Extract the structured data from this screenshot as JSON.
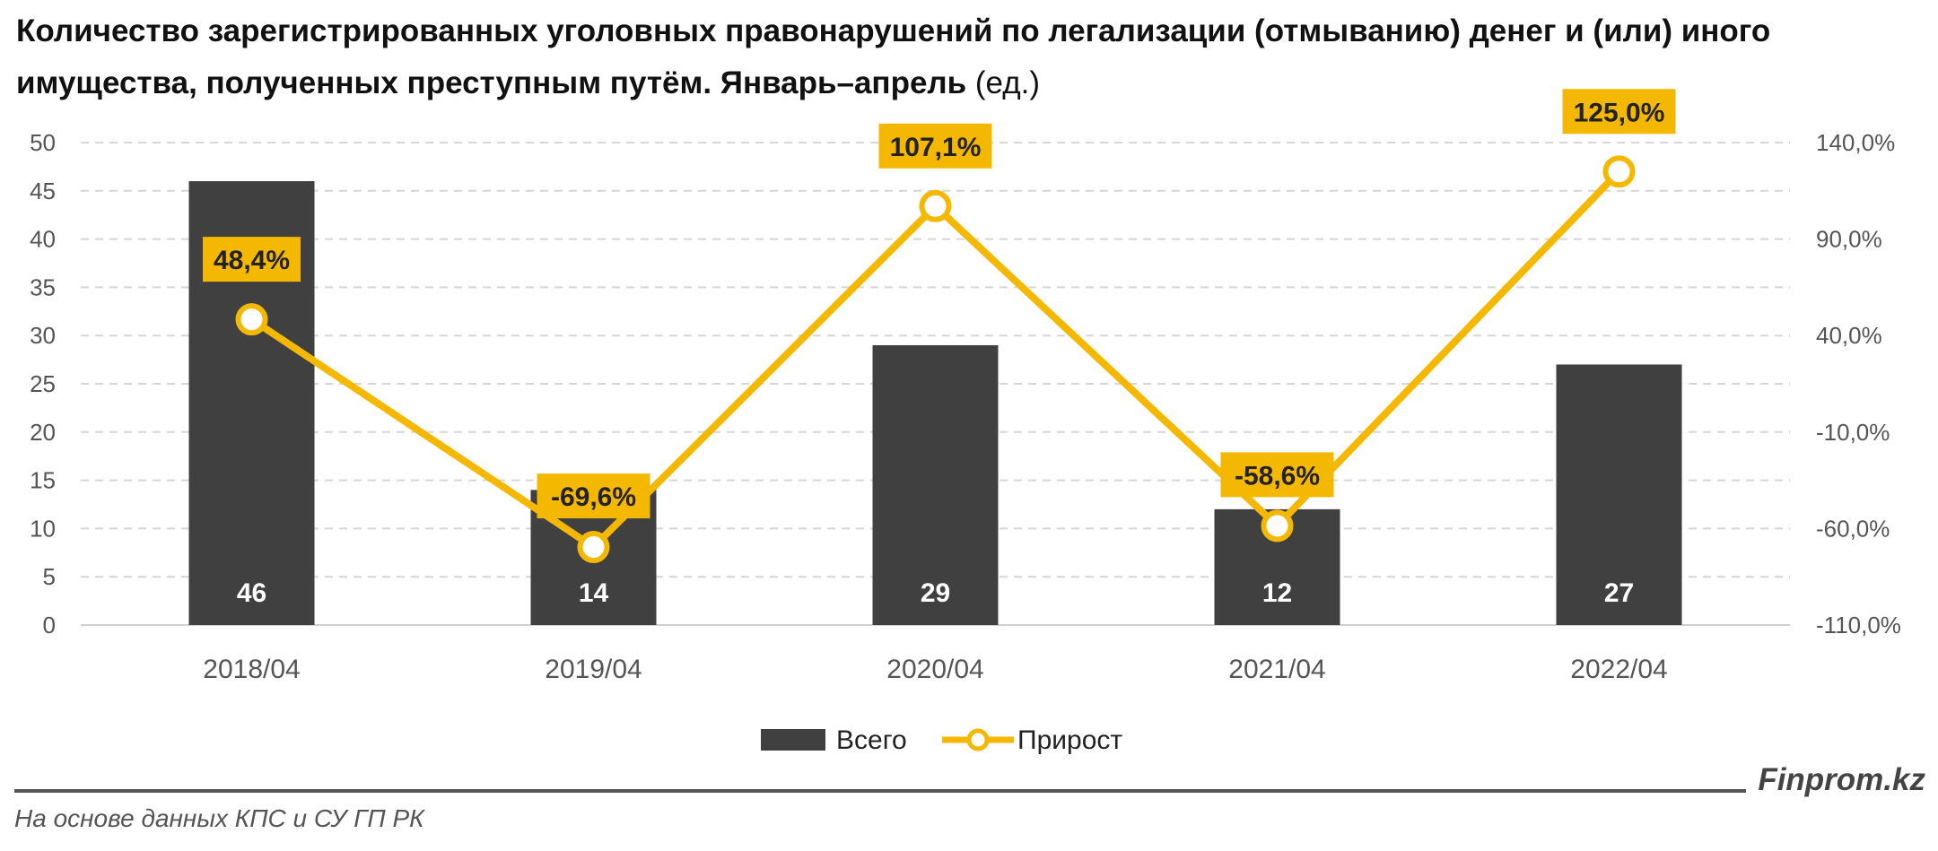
{
  "title": {
    "main": "Количество зарегистрированных уголовных правонарушений по легализации (отмыванию) денег и (или) иного имущества, полученных преступным путём. Январь–апрель",
    "unit": "(ед.)"
  },
  "chart_data": {
    "type": "bar+line",
    "categories": [
      "2018/04",
      "2019/04",
      "2020/04",
      "2021/04",
      "2022/04"
    ],
    "series": [
      {
        "name": "Всего",
        "type": "bar",
        "axis": "left",
        "values": [
          46,
          14,
          29,
          12,
          27
        ],
        "labels": [
          "46",
          "14",
          "29",
          "12",
          "27"
        ],
        "color": "#404040"
      },
      {
        "name": "Прирост",
        "type": "line",
        "axis": "right",
        "values": [
          48.4,
          -69.6,
          107.1,
          -58.6,
          125.0
        ],
        "labels": [
          "48,4%",
          "-69,6%",
          "107,1%",
          "-58,6%",
          "125,0%"
        ],
        "color": "#F5B800"
      }
    ],
    "y_left": {
      "ylim": [
        0,
        50
      ],
      "ticks": [
        "0",
        "5",
        "10",
        "15",
        "20",
        "25",
        "30",
        "35",
        "40",
        "45",
        "50"
      ]
    },
    "y_right": {
      "ylim": [
        -110,
        140
      ],
      "ticks": [
        "-110,0%",
        "-60,0%",
        "-10,0%",
        "40,0%",
        "90,0%",
        "140,0%"
      ]
    },
    "grid": true,
    "legend": {
      "position": "bottom",
      "items": [
        "Всего",
        "Прирост"
      ]
    }
  },
  "footer": {
    "brand": "Finprom.kz",
    "source": "На основе данных КПС и СУ ГП РК"
  }
}
